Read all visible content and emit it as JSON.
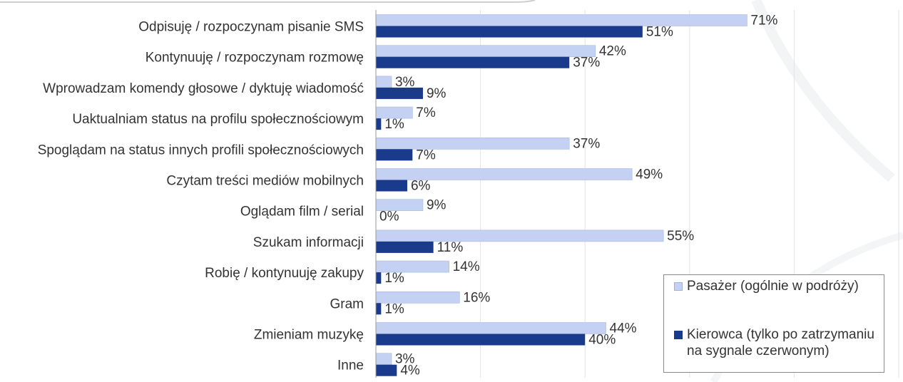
{
  "chart_data": {
    "type": "bar",
    "orientation": "horizontal",
    "categories": [
      "Odpisuję / rozpoczynam pisanie SMS",
      "Kontynuuję / rozpoczynam rozmowę",
      "Wprowadzam komendy głosowe / dyktuję wiadomość",
      "Uaktualniam status na profilu społecznościowym",
      "Spoglądam na status innych profili społecznościowych",
      "Czytam treści mediów mobilnych",
      "Oglądam film / serial",
      "Szukam informacji",
      "Robię / kontynuuję zakupy",
      "Gram",
      "Zmieniam muzykę",
      "Inne"
    ],
    "series": [
      {
        "name": "Pasażer (ogólnie w podróży)",
        "color": "#c4d1f2",
        "values": [
          71,
          42,
          3,
          7,
          37,
          49,
          9,
          55,
          14,
          16,
          44,
          3
        ],
        "labels": [
          "71%",
          "42%",
          "3%",
          "7%",
          "37%",
          "49%",
          "9%",
          "55%",
          "14%",
          "16%",
          "44%",
          "3%"
        ]
      },
      {
        "name": "Kierowca (tylko po zatrzymaniu na sygnale czerwonym)",
        "color": "#1a3a8c",
        "values": [
          51,
          37,
          9,
          1,
          7,
          6,
          0,
          11,
          1,
          1,
          40,
          4
        ],
        "labels": [
          "51%",
          "37%",
          "9%",
          "1%",
          "7%",
          "6%",
          "0%",
          "11%",
          "1%",
          "1%",
          "40%",
          "4%"
        ]
      }
    ],
    "xlim": [
      0,
      100
    ],
    "grid": true,
    "legend_position": "bottom-right"
  }
}
